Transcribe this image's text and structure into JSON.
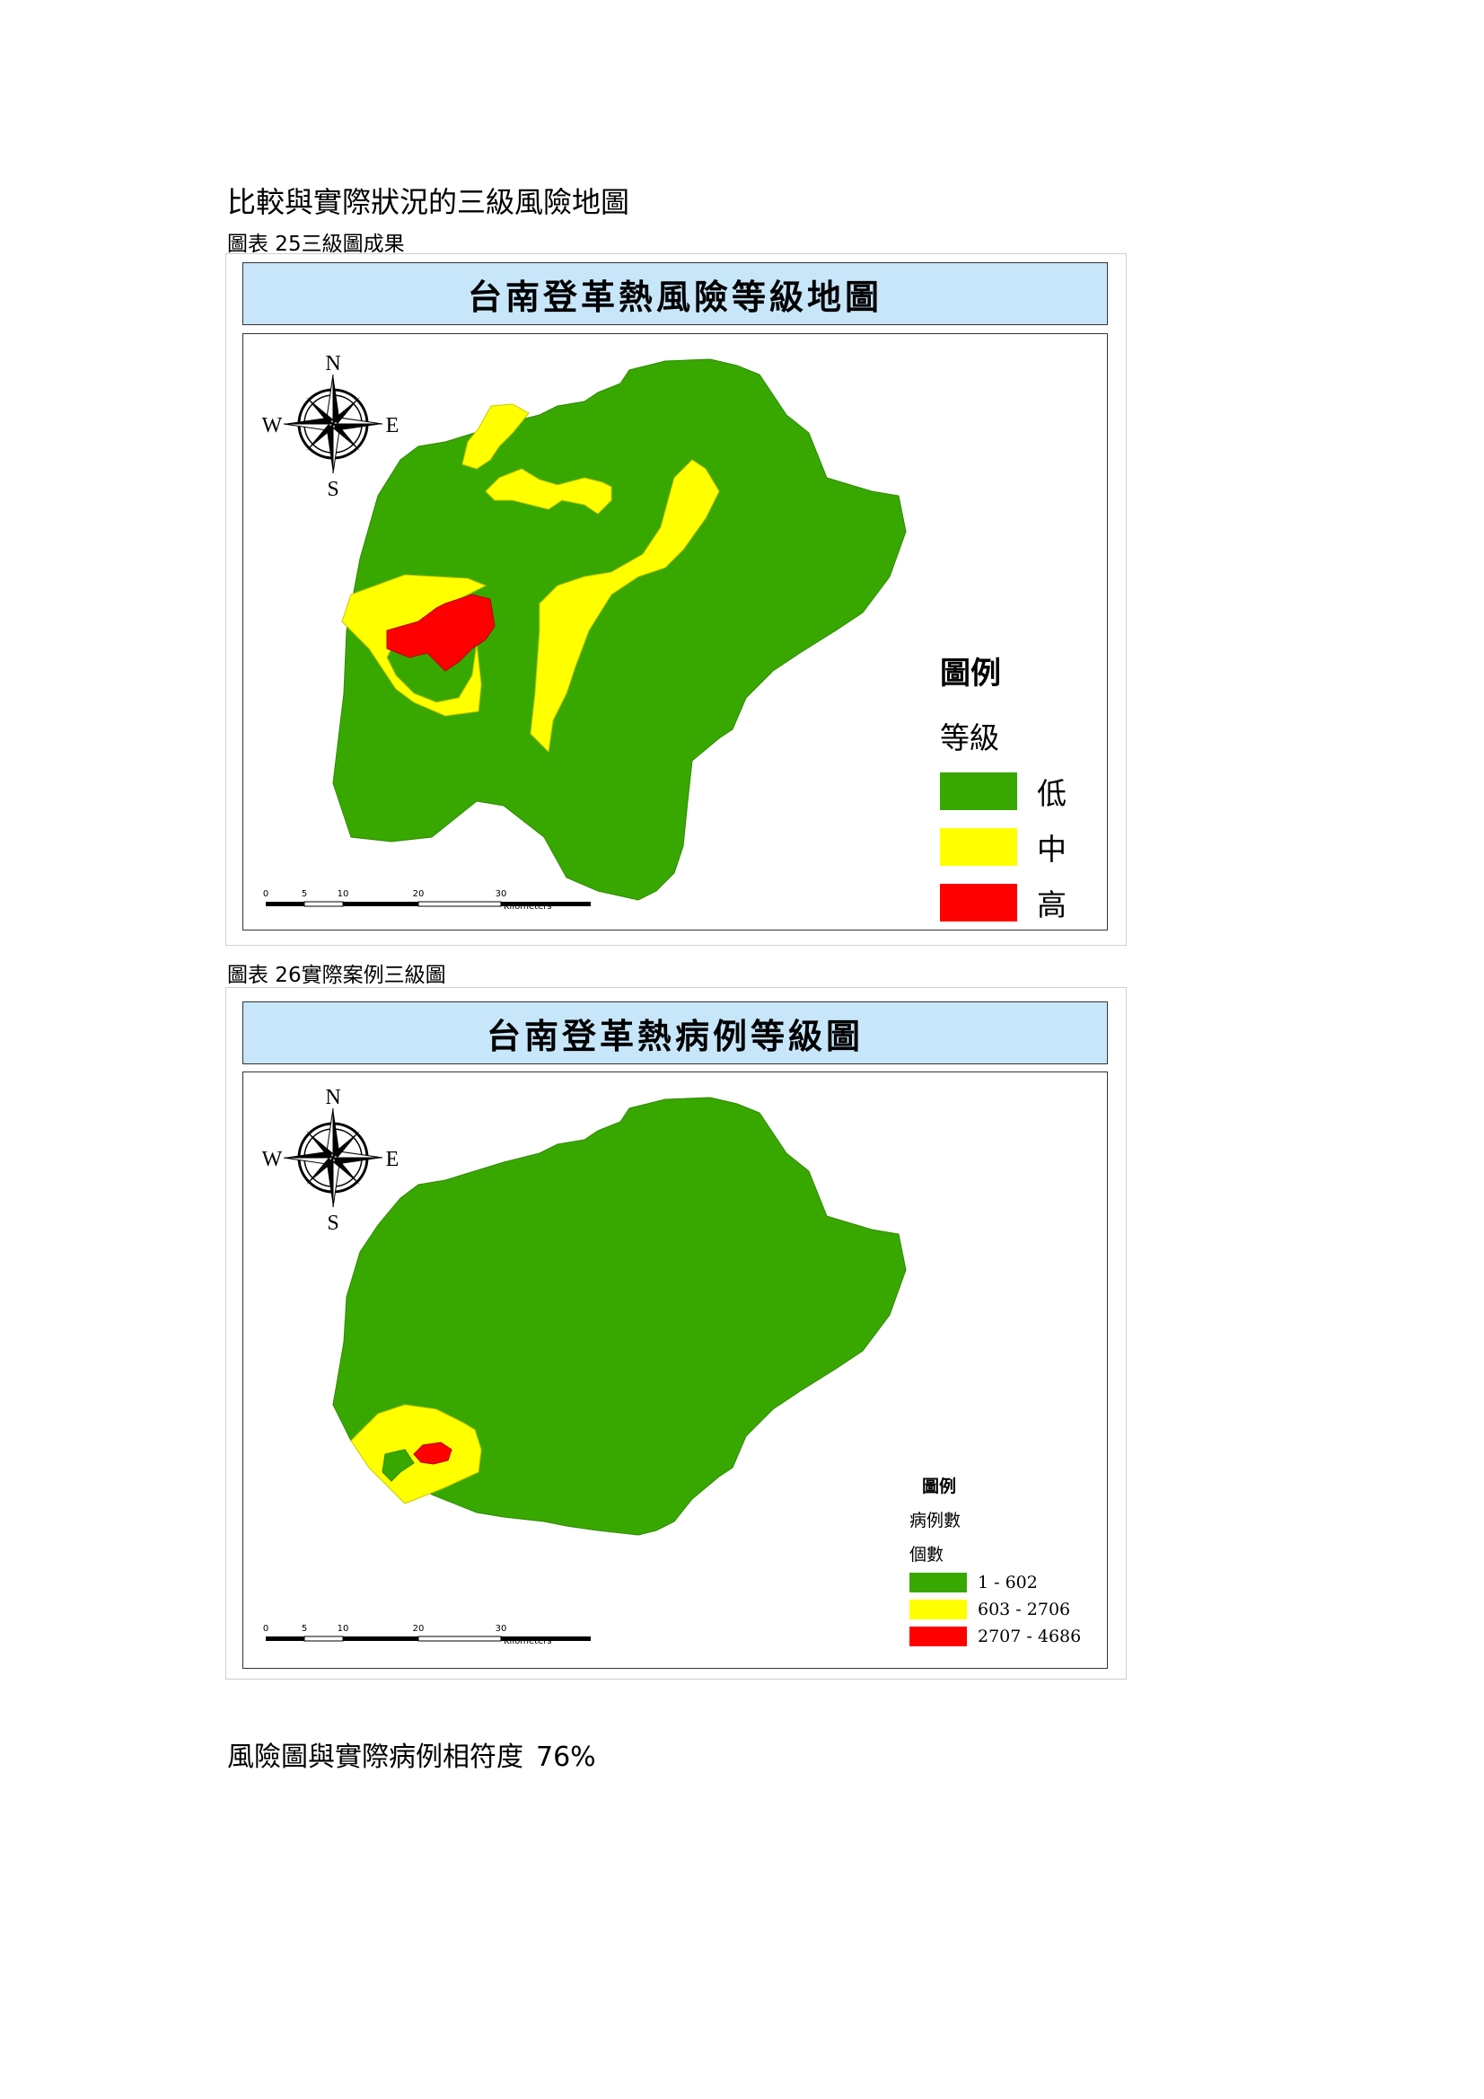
{
  "heading": "比較與實際狀況的三級風險地圖",
  "figure1": {
    "caption": "圖表 25三級圖成果",
    "title": "台南登革熱風險等級地圖",
    "compass": {
      "n": "N",
      "s": "S",
      "e": "E",
      "w": "W"
    },
    "legend": {
      "title": "圖例",
      "subtitle": "等級",
      "items": [
        {
          "label": "低",
          "color": "#38a800"
        },
        {
          "label": "中",
          "color": "#ffff00"
        },
        {
          "label": "高",
          "color": "#ff0000"
        }
      ]
    },
    "scale": {
      "ticks": [
        "0",
        "5",
        "10",
        "20",
        "30"
      ],
      "unit": "Kilometers"
    }
  },
  "figure2": {
    "caption": "圖表 26實際案例三級圖",
    "title": "台南登革熱病例等級圖",
    "compass": {
      "n": "N",
      "s": "S",
      "e": "E",
      "w": "W"
    },
    "legend": {
      "title": "圖例",
      "subtitle": "病例數",
      "subtitle2": "個數",
      "items": [
        {
          "label": "1 - 602",
          "color": "#38a800"
        },
        {
          "label": "603 - 2706",
          "color": "#ffff00"
        },
        {
          "label": "2707 - 4686",
          "color": "#ff0000"
        }
      ]
    },
    "scale": {
      "ticks": [
        "0",
        "5",
        "10",
        "20",
        "30"
      ],
      "unit": "Kilometers"
    }
  },
  "result": {
    "label": "風險圖與實際病例相符度",
    "value": "76%"
  }
}
